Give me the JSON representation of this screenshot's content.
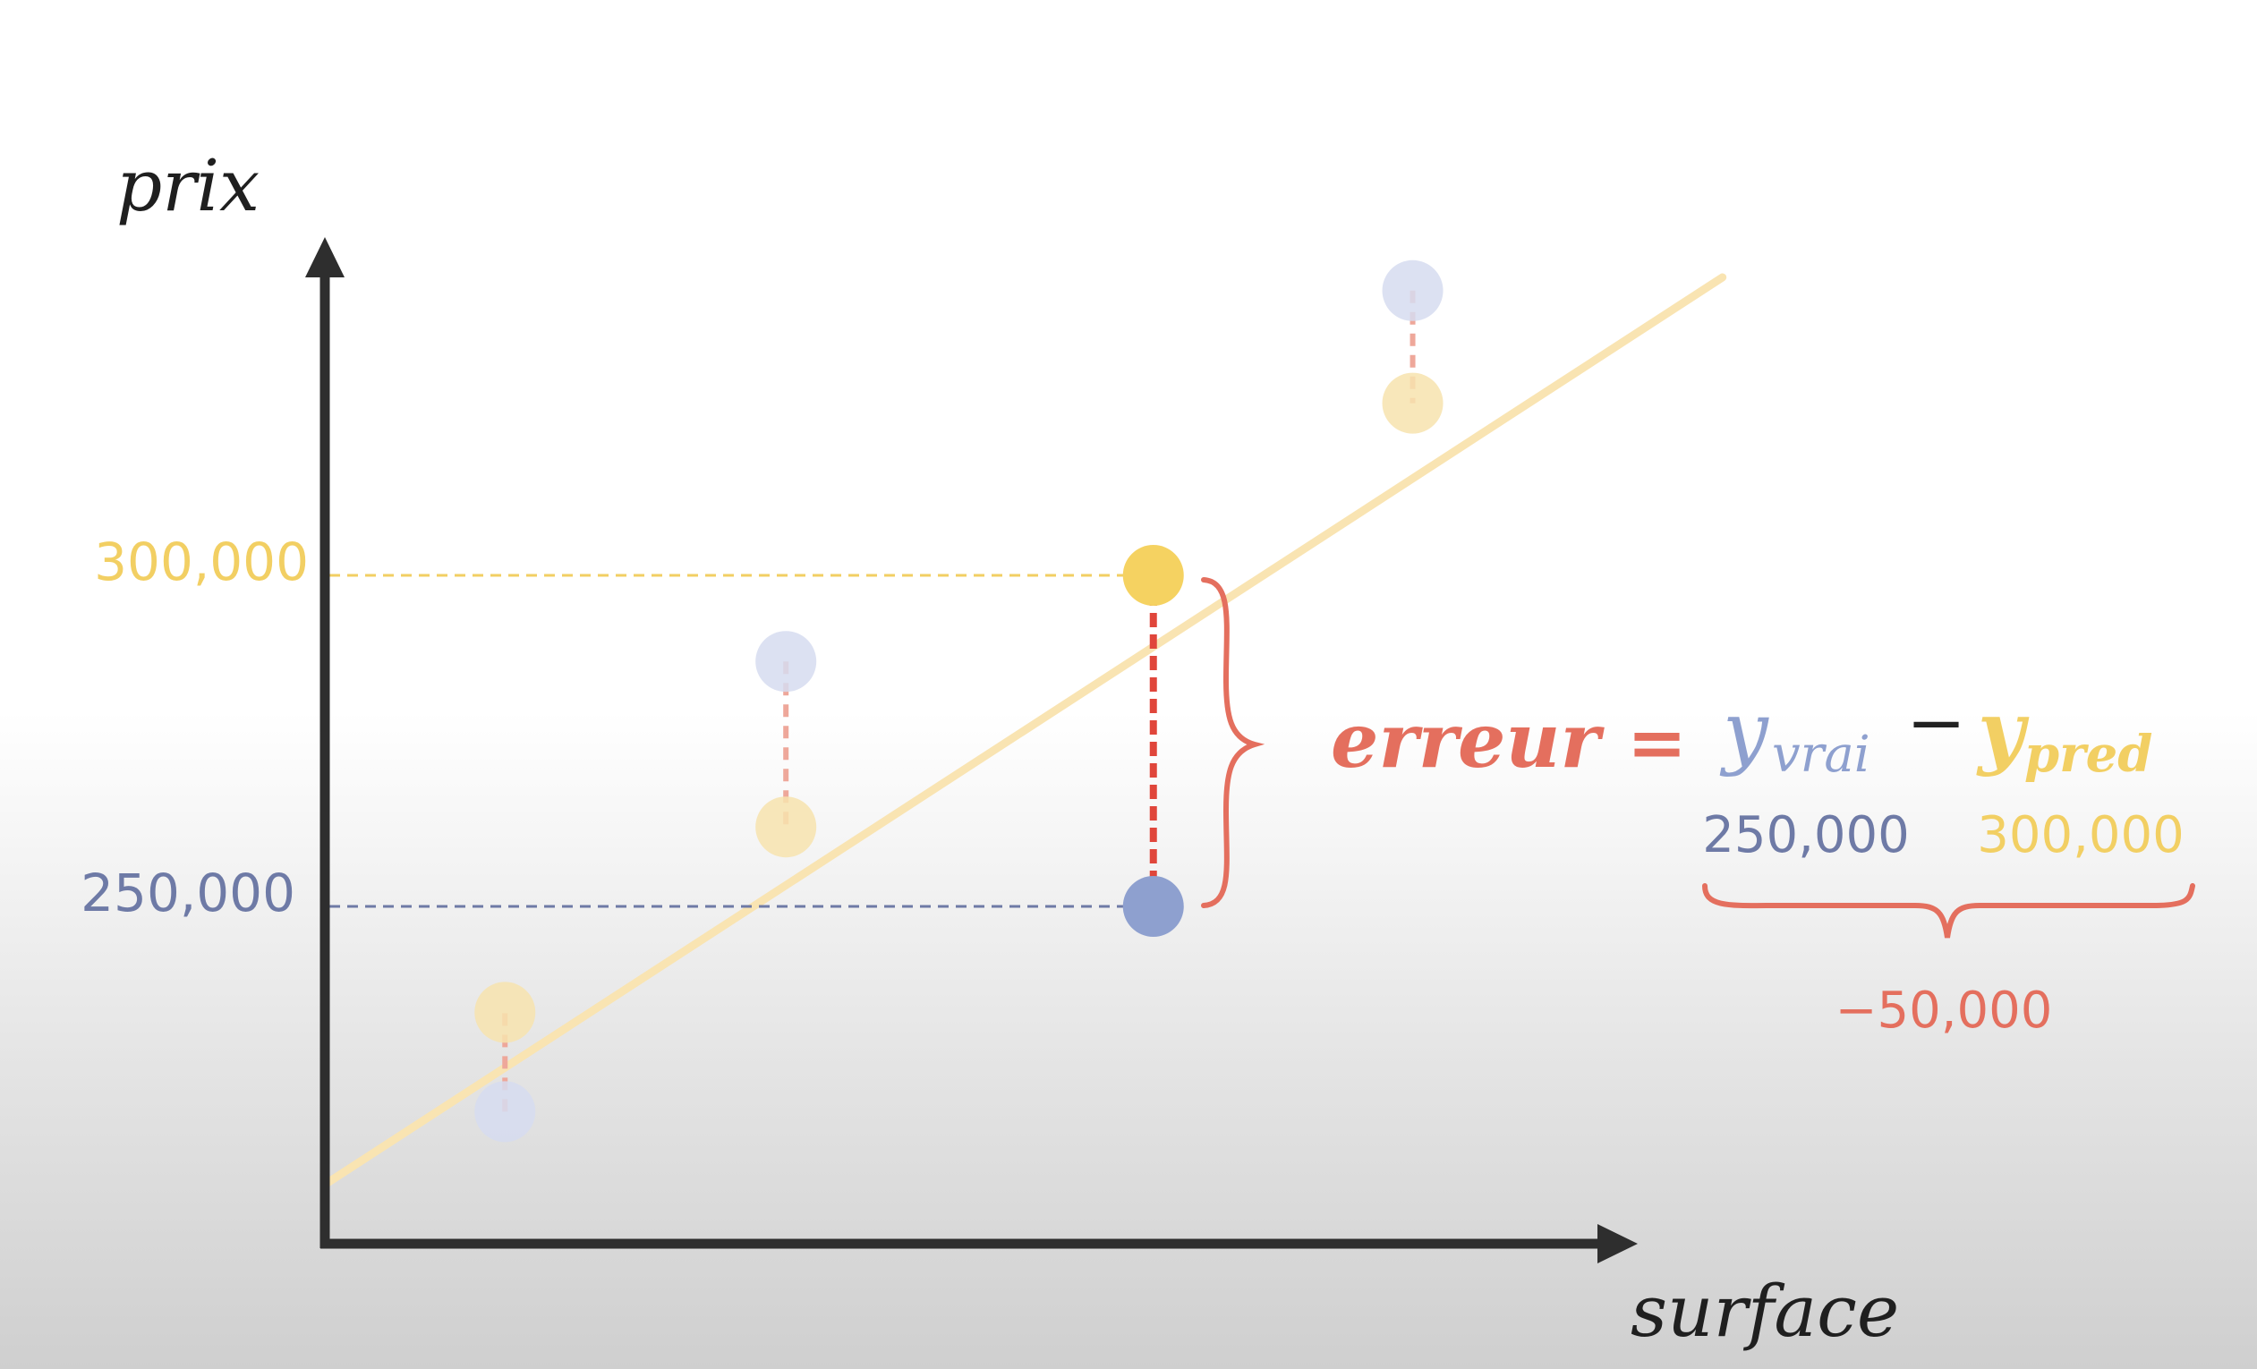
{
  "colors": {
    "axis": "#2e2e2e",
    "regression_line": "#f9e4b2",
    "predicted": "#f5d261",
    "predicted_faded": "#f7e3ae",
    "actual": "#8ea0cf",
    "actual_faded": "#d6dcf0",
    "error": "#e0463b",
    "error_faded": "#eea79a",
    "annotation_red": "#e46f5e",
    "label_blue": "#6e7aa6",
    "label_yellow": "#f2cf63"
  },
  "chart_data": {
    "type": "scatter",
    "xlabel": "surface",
    "ylabel": "prix",
    "ylim": [
      200000,
      350000
    ],
    "yticks": [
      {
        "value": 300000,
        "label": "300,000",
        "color": "yellow"
      },
      {
        "value": 250000,
        "label": "250,000",
        "color": "blue"
      }
    ],
    "grid": false,
    "regression_line": {
      "x": [
        0,
        9.7
      ],
      "y": [
        208000,
        345000
      ]
    },
    "points": [
      {
        "x": 1.25,
        "actual": 219000,
        "predicted": 234000,
        "highlighted": false
      },
      {
        "x": 3.2,
        "actual": 287000,
        "predicted": 262000,
        "highlighted": false
      },
      {
        "x": 5.75,
        "actual": 250000,
        "predicted": 300000,
        "highlighted": true
      },
      {
        "x": 7.55,
        "actual": 343000,
        "predicted": 326000,
        "highlighted": false
      }
    ]
  },
  "formula": {
    "lhs": "erreur",
    "equals": "=",
    "term1_base": "y",
    "term1_sub": "vrai",
    "minus": "−",
    "term2_base": "y",
    "term2_sub": "pred",
    "value1": "250,000",
    "value2": "300,000",
    "result": "−50,000"
  }
}
